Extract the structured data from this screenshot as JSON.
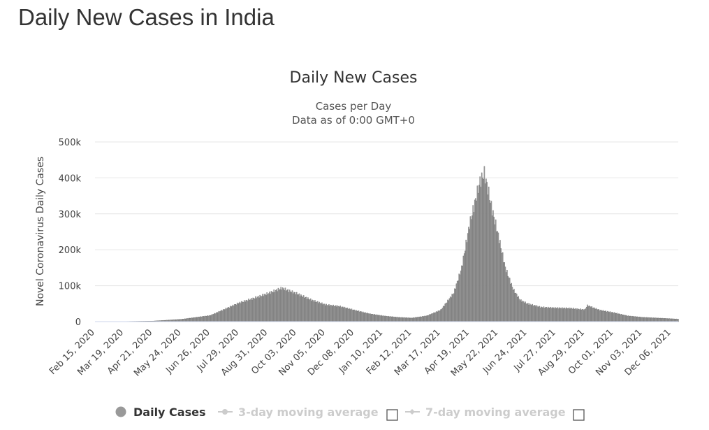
{
  "page": {
    "title": "Daily New Cases in India"
  },
  "chart_data": {
    "type": "bar",
    "title": "Daily New Cases",
    "subtitle": [
      "Cases per Day",
      "Data as of 0:00 GMT+0"
    ],
    "ylabel": "Novel Coronavirus Daily Cases",
    "xlabel": "",
    "ylim": [
      0,
      500000
    ],
    "yticks": [
      0,
      100000,
      200000,
      300000,
      400000,
      500000
    ],
    "ytick_labels": [
      "0",
      "100k",
      "200k",
      "300k",
      "400k",
      "500k"
    ],
    "x_range": [
      "2020-02-15",
      "2021-12-14"
    ],
    "xtick_labels": [
      "Feb 15, 2020",
      "Mar 19, 2020",
      "Apr 21, 2020",
      "May 24, 2020",
      "Jun 26, 2020",
      "Jul 29, 2020",
      "Aug 31, 2020",
      "Oct 03, 2020",
      "Nov 05, 2020",
      "Dec 08, 2020",
      "Jan 10, 2021",
      "Feb 12, 2021",
      "Mar 17, 2021",
      "Apr 19, 2021",
      "May 22, 2021",
      "Jun 24, 2021",
      "Jul 27, 2021",
      "Aug 29, 2021",
      "Oct 01, 2021",
      "Nov 03, 2021",
      "Dec 06, 2021"
    ],
    "grid": true,
    "legend_position": "bottom",
    "series": [
      {
        "name": "Daily Cases",
        "color": "#a0a0a0",
        "x": [
          "2020-02-15",
          "2020-03-19",
          "2020-04-21",
          "2020-05-24",
          "2020-06-26",
          "2020-07-29",
          "2020-08-15",
          "2020-08-31",
          "2020-09-16",
          "2020-10-03",
          "2020-10-20",
          "2020-11-05",
          "2020-11-22",
          "2020-12-08",
          "2020-12-25",
          "2021-01-10",
          "2021-01-27",
          "2021-02-12",
          "2021-03-01",
          "2021-03-17",
          "2021-04-01",
          "2021-04-10",
          "2021-04-19",
          "2021-04-27",
          "2021-05-01",
          "2021-05-06",
          "2021-05-10",
          "2021-05-15",
          "2021-05-22",
          "2021-05-30",
          "2021-06-08",
          "2021-06-16",
          "2021-06-24",
          "2021-07-10",
          "2021-07-27",
          "2021-08-13",
          "2021-08-29",
          "2021-09-01",
          "2021-09-15",
          "2021-10-01",
          "2021-10-17",
          "2021-11-03",
          "2021-11-20",
          "2021-12-06",
          "2021-12-14"
        ],
        "values": [
          0,
          500,
          1500,
          6500,
          17000,
          52000,
          65000,
          78000,
          93000,
          78000,
          60000,
          47000,
          42000,
          32000,
          22000,
          16000,
          12000,
          10000,
          16000,
          32000,
          80000,
          150000,
          270000,
          350000,
          390000,
          412000,
          370000,
          310000,
          240000,
          150000,
          90000,
          60000,
          50000,
          40000,
          38000,
          37000,
          33000,
          45000,
          32000,
          25000,
          16000,
          12000,
          10000,
          8000,
          7000
        ]
      },
      {
        "name": "3-day moving average",
        "visible": false,
        "color": "#cccccc"
      },
      {
        "name": "7-day moving average",
        "visible": false,
        "color": "#cccccc"
      }
    ]
  }
}
